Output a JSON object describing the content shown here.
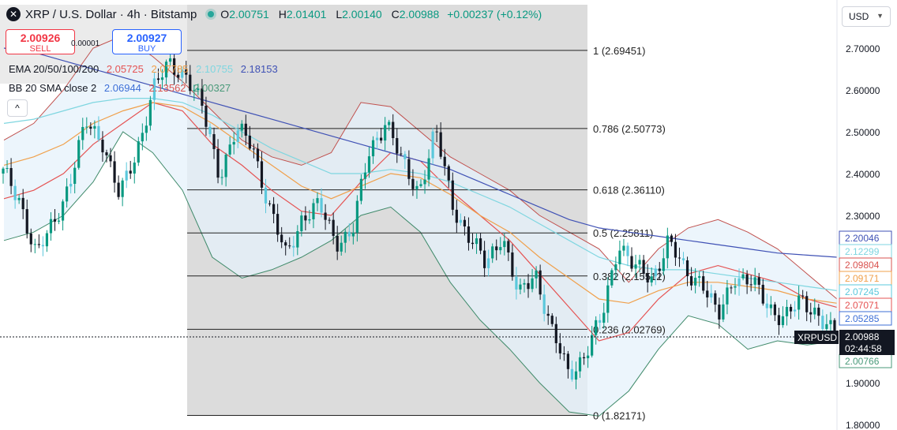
{
  "header": {
    "symbol_title": "XRP / U.S. Dollar · 4h · Bitstamp",
    "ohlc": [
      {
        "key": "O",
        "value": "2.00751"
      },
      {
        "key": "H",
        "value": "2.01401"
      },
      {
        "key": "L",
        "value": "2.00140"
      },
      {
        "key": "C",
        "value": "2.00988"
      }
    ],
    "change": "+0.00237 (+0.12%)",
    "sell_price": "2.00926",
    "sell_label": "SELL",
    "buy_price": "2.00927",
    "buy_label": "BUY",
    "spread": "0.00001",
    "currency": "USD",
    "collapse_icon": "chevron-up-icon",
    "logo_icon": "x-icon"
  },
  "indicators": {
    "ema": {
      "label": "EMA 20/50/100/200",
      "values": [
        "2.05725",
        "2.07785",
        "2.10755",
        "2.18153"
      ],
      "colors": [
        "#e55353",
        "#f0a04b",
        "#7fd6e0",
        "#3f51b5"
      ]
    },
    "bb": {
      "label": "BB 20 SMA close 2",
      "values": [
        "2.06944",
        "2.13562",
        "2.00327"
      ],
      "colors": [
        "#3d6fd6",
        "#d9534f",
        "#4a9a7a"
      ]
    }
  },
  "colors": {
    "up": "#089981",
    "down": "#131722",
    "cyan_candle": "#5bc8dc",
    "fib_box": "#d6d6d6",
    "bb_fill": "#e6f2fb"
  },
  "chart_data": {
    "type": "candlestick",
    "ylim": [
      1.8,
      2.73
    ],
    "y_ticks": [
      "2.70000",
      "2.60000",
      "2.50000",
      "2.40000",
      "2.30000",
      "2.20000",
      "2.10000",
      "2.00000",
      "1.90000",
      "1.80000"
    ],
    "fib_levels": [
      {
        "label": "1 (2.69451)",
        "value": 2.69451
      },
      {
        "label": "0.786 (2.50773)",
        "value": 2.50773
      },
      {
        "label": "0.618 (2.36110)",
        "value": 2.3611
      },
      {
        "label": "0.5 (2.25811)",
        "value": 2.25811
      },
      {
        "label": "0.382 (2.15512)",
        "value": 2.15512
      },
      {
        "label": "0.236 (2.02769)",
        "value": 2.02769
      },
      {
        "label": "0 (1.82171)",
        "value": 1.82171
      }
    ],
    "last_price": {
      "symbol": "XRPUSD",
      "value": "2.00988",
      "countdown": "02:44:58",
      "level": 2.00988
    },
    "price_labels": [
      {
        "text": "2.20046",
        "level": 2.20046,
        "color": "#3f51b5"
      },
      {
        "text": "2.12299",
        "level": 2.12299,
        "color": "#7fd6e0"
      },
      {
        "text": "2.09804",
        "level": 2.09804,
        "color": "#d9534f"
      },
      {
        "text": "2.09171",
        "level": 2.09171,
        "color": "#f0a04b"
      },
      {
        "text": "2.07245",
        "level": 2.07245,
        "color": "#5bc8dc"
      },
      {
        "text": "2.07071",
        "level": 2.07071,
        "color": "#e55353"
      },
      {
        "text": "2.05285",
        "level": 2.05285,
        "color": "#3d6fd6"
      },
      {
        "text": "2.00766",
        "level": 2.00766,
        "color": "#4a9a7a"
      }
    ],
    "series_path": [
      2.4,
      2.34,
      2.2,
      2.28,
      2.38,
      2.52,
      2.48,
      2.34,
      2.45,
      2.6,
      2.66,
      2.64,
      2.55,
      2.4,
      2.5,
      2.47,
      2.32,
      2.2,
      2.3,
      2.32,
      2.24,
      2.26,
      2.45,
      2.53,
      2.42,
      2.36,
      2.5,
      2.33,
      2.25,
      2.18,
      2.26,
      2.1,
      2.17,
      2.02,
      1.92,
      1.97,
      2.05,
      2.24,
      2.17,
      2.15,
      2.24,
      2.16,
      2.15,
      2.05,
      2.16,
      2.14,
      2.08,
      2.06,
      2.09,
      2.07,
      2.01
    ],
    "ema20": [
      2.34,
      2.36,
      2.4,
      2.47,
      2.52,
      2.57,
      2.55,
      2.47,
      2.42,
      2.36,
      2.31,
      2.3,
      2.38,
      2.45,
      2.43,
      2.36,
      2.3,
      2.24,
      2.16,
      2.08,
      2.0,
      2.02,
      2.1,
      2.16,
      2.18,
      2.16,
      2.14,
      2.1,
      2.08
    ],
    "ema50": [
      2.42,
      2.44,
      2.47,
      2.52,
      2.55,
      2.57,
      2.56,
      2.52,
      2.47,
      2.42,
      2.37,
      2.34,
      2.37,
      2.4,
      2.39,
      2.35,
      2.3,
      2.26,
      2.2,
      2.15,
      2.1,
      2.09,
      2.12,
      2.14,
      2.14,
      2.13,
      2.12,
      2.1,
      2.09
    ],
    "ema100": [
      2.52,
      2.53,
      2.55,
      2.57,
      2.58,
      2.58,
      2.57,
      2.54,
      2.5,
      2.46,
      2.43,
      2.4,
      2.4,
      2.41,
      2.4,
      2.38,
      2.35,
      2.32,
      2.28,
      2.24,
      2.2,
      2.18,
      2.17,
      2.17,
      2.16,
      2.15,
      2.14,
      2.13,
      2.12
    ],
    "ema200": [
      2.7,
      2.69,
      2.67,
      2.65,
      2.63,
      2.61,
      2.59,
      2.57,
      2.55,
      2.53,
      2.51,
      2.49,
      2.47,
      2.45,
      2.43,
      2.41,
      2.38,
      2.35,
      2.32,
      2.29,
      2.27,
      2.26,
      2.25,
      2.24,
      2.23,
      2.22,
      2.21,
      2.205,
      2.2
    ],
    "bb_upper": [
      2.48,
      2.52,
      2.6,
      2.7,
      2.73,
      2.68,
      2.62,
      2.55,
      2.48,
      2.44,
      2.42,
      2.45,
      2.57,
      2.56,
      2.5,
      2.44,
      2.4,
      2.36,
      2.3,
      2.26,
      2.22,
      2.14,
      2.22,
      2.27,
      2.29,
      2.26,
      2.22,
      2.16,
      2.1
    ],
    "bb_lower": [
      2.24,
      2.26,
      2.3,
      2.38,
      2.5,
      2.45,
      2.36,
      2.2,
      2.15,
      2.17,
      2.2,
      2.24,
      2.3,
      2.32,
      2.26,
      2.14,
      2.05,
      1.98,
      1.9,
      1.83,
      1.82,
      1.88,
      1.98,
      2.06,
      2.04,
      1.98,
      2.0,
      1.99,
      2.0
    ]
  }
}
